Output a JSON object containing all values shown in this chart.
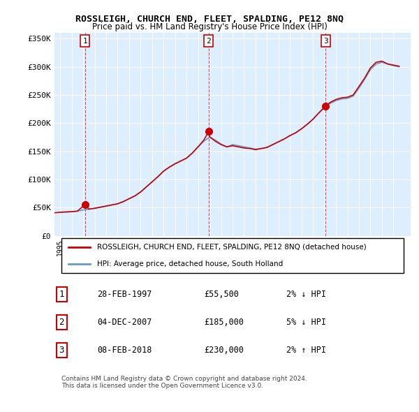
{
  "title": "ROSSLEIGH, CHURCH END, FLEET, SPALDING, PE12 8NQ",
  "subtitle": "Price paid vs. HM Land Registry's House Price Index (HPI)",
  "background_color": "#ddeeff",
  "plot_bg_color": "#ddeeff",
  "ylim": [
    0,
    360000
  ],
  "yticks": [
    0,
    50000,
    100000,
    150000,
    200000,
    250000,
    300000,
    350000
  ],
  "ytick_labels": [
    "£0",
    "£50K",
    "£100K",
    "£150K",
    "£200K",
    "£250K",
    "£300K",
    "£350K"
  ],
  "xlim_start": 1994.5,
  "xlim_end": 2025.5,
  "sale_dates": [
    1997.16,
    2007.92,
    2018.1
  ],
  "sale_prices": [
    55500,
    185000,
    230000
  ],
  "sale_labels": [
    "1",
    "2",
    "3"
  ],
  "legend_line1": "ROSSLEIGH, CHURCH END, FLEET, SPALDING, PE12 8NQ (detached house)",
  "legend_line2": "HPI: Average price, detached house, South Holland",
  "legend_line1_color": "#cc0000",
  "legend_line2_color": "#6699cc",
  "table_rows": [
    [
      "1",
      "28-FEB-1997",
      "£55,500",
      "2% ↓ HPI"
    ],
    [
      "2",
      "04-DEC-2007",
      "£185,000",
      "5% ↓ HPI"
    ],
    [
      "3",
      "08-FEB-2018",
      "£230,000",
      "2% ↑ HPI"
    ]
  ],
  "footnote": "Contains HM Land Registry data © Crown copyright and database right 2024.\nThis data is licensed under the Open Government Licence v3.0.",
  "hpi_years": [
    1995,
    1995.5,
    1996,
    1996.5,
    1997,
    1997.5,
    1998,
    1998.5,
    1999,
    1999.5,
    2000,
    2000.5,
    2001,
    2001.5,
    2002,
    2002.5,
    2003,
    2003.5,
    2004,
    2004.5,
    2005,
    2005.5,
    2006,
    2006.5,
    2007,
    2007.5,
    2008,
    2008.5,
    2009,
    2009.5,
    2010,
    2010.5,
    2011,
    2011.5,
    2012,
    2012.5,
    2013,
    2013.5,
    2014,
    2014.5,
    2015,
    2015.5,
    2016,
    2016.5,
    2017,
    2017.5,
    2018,
    2018.5,
    2019,
    2019.5,
    2020,
    2020.5,
    2021,
    2021.5,
    2022,
    2022.5,
    2023,
    2023.5,
    2024,
    2024.5
  ],
  "hpi_values": [
    42000,
    42500,
    43000,
    44000,
    46000,
    47500,
    49000,
    51000,
    53000,
    55000,
    57000,
    61000,
    66000,
    71000,
    78000,
    87000,
    96000,
    105000,
    115000,
    122000,
    128000,
    133000,
    138000,
    147000,
    158000,
    168000,
    175000,
    170000,
    163000,
    158000,
    162000,
    160000,
    158000,
    156000,
    154000,
    155000,
    157000,
    162000,
    167000,
    172000,
    178000,
    183000,
    190000,
    198000,
    207000,
    218000,
    228000,
    235000,
    240000,
    243000,
    244000,
    248000,
    262000,
    278000,
    295000,
    305000,
    308000,
    305000,
    302000,
    300000
  ],
  "price_years": [
    1994.5,
    1995,
    1995.5,
    1996,
    1996.5,
    1997.16,
    1997.5,
    1998,
    1998.5,
    1999,
    1999.5,
    2000,
    2000.5,
    2001,
    2001.5,
    2002,
    2002.5,
    2003,
    2003.5,
    2004,
    2004.5,
    2005,
    2005.5,
    2006,
    2006.5,
    2007,
    2007.5,
    2007.92,
    2008,
    2008.5,
    2009,
    2009.5,
    2010,
    2010.5,
    2011,
    2011.5,
    2012,
    2012.5,
    2013,
    2013.5,
    2014,
    2014.5,
    2015,
    2015.5,
    2016,
    2016.5,
    2017,
    2017.5,
    2018.1,
    2018.5,
    2019,
    2019.5,
    2020,
    2020.5,
    2021,
    2021.5,
    2022,
    2022.5,
    2023,
    2023.5,
    2024,
    2024.5
  ],
  "price_values": [
    41000,
    42000,
    42500,
    43000,
    44000,
    55500,
    47500,
    49000,
    51000,
    53000,
    55000,
    57000,
    61000,
    66000,
    71000,
    78000,
    87000,
    96000,
    105000,
    115000,
    122000,
    128000,
    133000,
    138000,
    147000,
    158000,
    170000,
    185000,
    176000,
    168000,
    162000,
    158000,
    160000,
    158000,
    156000,
    155000,
    153000,
    155000,
    157000,
    162000,
    167000,
    172000,
    178000,
    183000,
    190000,
    198000,
    207000,
    218000,
    230000,
    237000,
    242000,
    245000,
    246000,
    250000,
    265000,
    280000,
    298000,
    308000,
    310000,
    305000,
    303000,
    301000
  ]
}
